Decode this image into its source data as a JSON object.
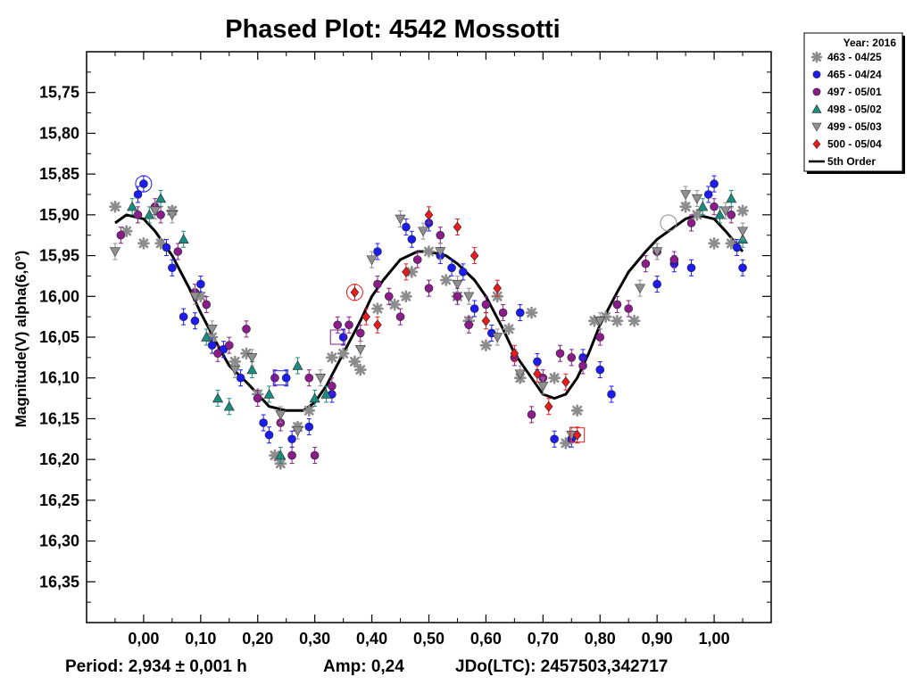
{
  "chart_data": {
    "type": "scatter",
    "title": "Phased Plot: 4542 Mossotti",
    "xlabel": "",
    "ylabel": "Magnitude(V) alpha(6,0°)",
    "xlim": [
      -0.1,
      1.1
    ],
    "ylim": [
      15.7,
      16.4
    ],
    "y_inverted": true,
    "x_ticks": [
      "0,00",
      "0,10",
      "0,20",
      "0,30",
      "0,40",
      "0,50",
      "0,60",
      "0,70",
      "0,80",
      "0,90",
      "1,00"
    ],
    "y_ticks": [
      "15,75",
      "15,80",
      "15,85",
      "15,90",
      "15,95",
      "16,00",
      "16,05",
      "16,10",
      "16,15",
      "16,20",
      "16,25",
      "16,30",
      "16,35"
    ],
    "legend": {
      "position": "top-right-outside",
      "title": "Year: 2016",
      "fit_label": "5th Order"
    },
    "fit": {
      "name": "5th Order",
      "x": [
        -0.05,
        -0.03,
        0.0,
        0.02,
        0.05,
        0.08,
        0.1,
        0.13,
        0.15,
        0.18,
        0.2,
        0.22,
        0.25,
        0.28,
        0.3,
        0.32,
        0.35,
        0.38,
        0.4,
        0.42,
        0.45,
        0.48,
        0.5,
        0.53,
        0.55,
        0.58,
        0.6,
        0.63,
        0.65,
        0.68,
        0.7,
        0.72,
        0.74,
        0.76,
        0.78,
        0.8,
        0.83,
        0.85,
        0.88,
        0.9,
        0.93,
        0.95,
        0.97,
        1.0,
        1.02,
        1.05
      ],
      "y": [
        15.91,
        15.9,
        15.905,
        15.92,
        15.95,
        15.99,
        16.02,
        16.06,
        16.085,
        16.105,
        16.12,
        16.135,
        16.14,
        16.14,
        16.13,
        16.11,
        16.07,
        16.03,
        16.0,
        15.98,
        15.955,
        15.945,
        15.945,
        15.95,
        15.96,
        15.98,
        16.0,
        16.04,
        16.07,
        16.1,
        16.12,
        16.125,
        16.12,
        16.1,
        16.07,
        16.035,
        15.995,
        15.97,
        15.945,
        15.93,
        15.915,
        15.905,
        15.9,
        15.905,
        15.92,
        15.945
      ]
    },
    "series": [
      {
        "name": "463 - 04/25",
        "marker": "asterisk",
        "color": "#8c8c8c",
        "x": [
          -0.05,
          -0.03,
          0.0,
          0.03,
          0.05,
          0.1,
          0.12,
          0.16,
          0.18,
          0.2,
          0.23,
          0.24,
          0.27,
          0.29,
          0.33,
          0.35,
          0.37,
          0.38,
          0.41,
          0.44,
          0.46,
          0.47,
          0.5,
          0.53,
          0.55,
          0.57,
          0.6,
          0.62,
          0.64,
          0.66,
          0.68,
          0.72,
          0.74,
          0.76,
          0.79,
          0.81,
          0.83,
          0.86,
          0.95,
          0.97,
          1.0,
          1.03,
          1.05
        ],
        "y": [
          15.89,
          15.92,
          15.935,
          15.935,
          15.895,
          16.0,
          16.05,
          16.08,
          16.07,
          16.12,
          16.195,
          16.205,
          16.16,
          16.14,
          16.075,
          16.07,
          16.08,
          16.09,
          16.015,
          16.01,
          16.0,
          15.97,
          15.945,
          15.98,
          16.0,
          16.03,
          16.06,
          16.0,
          16.04,
          16.1,
          16.02,
          16.1,
          16.18,
          16.14,
          16.03,
          16.025,
          16.03,
          16.03,
          15.89,
          15.9,
          15.935,
          15.935,
          15.895
        ]
      },
      {
        "name": "465 - 04/24",
        "marker": "circle",
        "color": "#1c1cf0",
        "x": [
          -0.01,
          0.0,
          0.04,
          0.05,
          0.07,
          0.09,
          0.1,
          0.12,
          0.14,
          0.17,
          0.21,
          0.22,
          0.25,
          0.26,
          0.29,
          0.33,
          0.35,
          0.41,
          0.46,
          0.47,
          0.5,
          0.52,
          0.54,
          0.56,
          0.58,
          0.61,
          0.66,
          0.69,
          0.72,
          0.75,
          0.77,
          0.8,
          0.82,
          0.9,
          0.93,
          0.96,
          0.99,
          1.0,
          1.04,
          1.05
        ],
        "y": [
          15.875,
          15.862,
          15.94,
          15.965,
          16.025,
          16.03,
          15.985,
          16.06,
          16.065,
          16.1,
          16.155,
          16.17,
          16.1,
          16.175,
          16.16,
          16.12,
          16.05,
          15.945,
          15.915,
          15.93,
          15.91,
          15.95,
          15.965,
          15.97,
          16.015,
          16.045,
          16.02,
          16.08,
          16.175,
          16.175,
          16.075,
          16.09,
          16.12,
          15.985,
          15.96,
          15.965,
          15.875,
          15.862,
          15.94,
          15.965
        ]
      },
      {
        "name": "497 - 05/01",
        "marker": "circle",
        "color": "#8b1c8b",
        "x": [
          -0.04,
          -0.01,
          0.02,
          0.03,
          0.06,
          0.09,
          0.11,
          0.13,
          0.15,
          0.18,
          0.2,
          0.23,
          0.24,
          0.26,
          0.29,
          0.3,
          0.33,
          0.34,
          0.36,
          0.38,
          0.41,
          0.43,
          0.45,
          0.48,
          0.5,
          0.52,
          0.55,
          0.57,
          0.6,
          0.63,
          0.65,
          0.68,
          0.7,
          0.73,
          0.75,
          0.77,
          0.8,
          0.83,
          0.85,
          0.88,
          0.9,
          0.93,
          0.96,
          1.0,
          1.03
        ],
        "y": [
          15.925,
          15.9,
          15.89,
          15.9,
          15.945,
          15.995,
          16.01,
          16.07,
          16.06,
          16.04,
          16.125,
          16.1,
          16.155,
          16.195,
          16.1,
          16.195,
          16.11,
          16.035,
          16.035,
          16.045,
          15.985,
          16.0,
          16.025,
          15.955,
          15.99,
          15.925,
          16.0,
          16.035,
          16.01,
          16.02,
          16.075,
          16.145,
          16.1,
          16.07,
          16.075,
          16.085,
          16.05,
          16.01,
          16.015,
          15.96,
          15.945,
          15.955,
          15.91,
          15.89,
          15.9
        ]
      },
      {
        "name": "498 - 05/02",
        "marker": "triangle-up",
        "color": "#1c8c80",
        "x": [
          -0.02,
          0.01,
          0.03,
          0.07,
          0.11,
          0.13,
          0.15,
          0.19,
          0.22,
          0.24,
          0.27,
          0.3,
          0.32,
          0.98,
          1.01,
          1.03,
          1.05
        ],
        "y": [
          15.89,
          15.9,
          15.88,
          15.93,
          16.05,
          16.125,
          16.135,
          16.09,
          16.12,
          16.195,
          16.085,
          16.125,
          16.12,
          15.89,
          15.9,
          15.88,
          15.93
        ]
      },
      {
        "name": "499 - 05/03",
        "marker": "triangle-down",
        "color": "#909090",
        "x": [
          -0.05,
          0.02,
          0.05,
          0.09,
          0.12,
          0.16,
          0.19,
          0.24,
          0.27,
          0.31,
          0.38,
          0.4,
          0.45,
          0.49,
          0.52,
          0.55,
          0.57,
          0.62,
          0.66,
          0.7,
          0.75,
          0.8,
          0.87,
          0.9,
          0.95,
          0.97,
          1.02,
          1.05
        ],
        "y": [
          15.945,
          15.895,
          15.9,
          16.0,
          16.04,
          16.09,
          16.075,
          16.145,
          16.165,
          16.1,
          16.065,
          15.955,
          15.905,
          15.92,
          15.945,
          15.985,
          16.0,
          16.05,
          16.095,
          16.11,
          16.17,
          16.03,
          15.99,
          15.945,
          15.875,
          15.88,
          15.895,
          15.92
        ]
      },
      {
        "name": "500 - 05/04",
        "marker": "diamond",
        "color": "#e81c1c",
        "x": [
          0.37,
          0.39,
          0.41,
          0.46,
          0.5,
          0.55,
          0.58,
          0.6,
          0.62,
          0.65,
          0.69,
          0.71,
          0.74,
          0.76
        ],
        "y": [
          15.995,
          16.025,
          16.035,
          15.97,
          15.9,
          15.915,
          15.95,
          16.03,
          15.99,
          16.07,
          16.095,
          16.135,
          16.105,
          16.17
        ]
      }
    ]
  },
  "footer": {
    "period": "Period: 2,934 ± 0,001 h",
    "amp": "Amp: 0,24",
    "jd": "JDo(LTC): 2457503,342717"
  }
}
